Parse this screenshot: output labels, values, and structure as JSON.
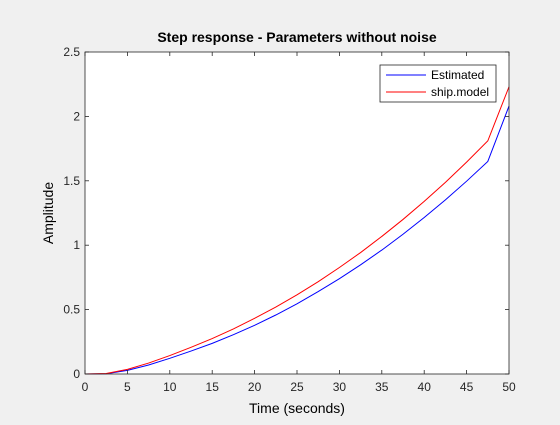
{
  "chart_data": {
    "type": "line",
    "title": "Step response - Parameters without noise",
    "xlabel": "Time (seconds)",
    "ylabel": "Amplitude",
    "xlim": [
      0,
      50
    ],
    "ylim": [
      0,
      2.5
    ],
    "xticks": [
      0,
      5,
      10,
      15,
      20,
      25,
      30,
      35,
      40,
      45,
      50
    ],
    "yticks": [
      0,
      0.5,
      1,
      1.5,
      2,
      2.5
    ],
    "xtick_labels": [
      "0",
      "5",
      "10",
      "15",
      "20",
      "25",
      "30",
      "35",
      "40",
      "45",
      "50"
    ],
    "ytick_labels": [
      "0",
      "0.5",
      "1",
      "1.5",
      "2",
      "2.5"
    ],
    "grid": false,
    "legend_position": "top-right",
    "x": [
      0,
      2.5,
      5,
      7.5,
      10,
      12.5,
      15,
      17.5,
      20,
      22.5,
      25,
      27.5,
      30,
      32.5,
      35,
      37.5,
      40,
      42.5,
      45,
      47.5,
      50
    ],
    "series": [
      {
        "name": "Estimated",
        "color": "#0000ff",
        "values": [
          0,
          0.002,
          0.028,
          0.07,
          0.122,
          0.178,
          0.238,
          0.305,
          0.378,
          0.458,
          0.545,
          0.64,
          0.74,
          0.848,
          0.962,
          1.085,
          1.215,
          1.352,
          1.497,
          1.65,
          2.08
        ]
      },
      {
        "name": "ship.model",
        "color": "#ff0000",
        "values": [
          0,
          0.004,
          0.036,
          0.085,
          0.143,
          0.207,
          0.275,
          0.35,
          0.432,
          0.52,
          0.615,
          0.717,
          0.827,
          0.943,
          1.068,
          1.2,
          1.34,
          1.488,
          1.645,
          1.81,
          2.23
        ]
      }
    ]
  }
}
